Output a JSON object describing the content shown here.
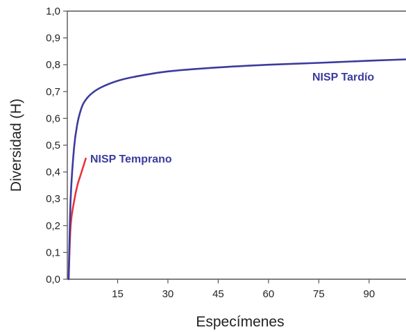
{
  "chart_data": {
    "type": "line",
    "xlabel": "Especímenes",
    "ylabel": "Diversidad (H)",
    "xlim": [
      0,
      101
    ],
    "ylim": [
      0,
      1.0
    ],
    "x_ticks": [
      15,
      30,
      45,
      60,
      75,
      90
    ],
    "y_ticks": [
      {
        "value": 0.0,
        "label": "0,0"
      },
      {
        "value": 0.1,
        "label": "0,1"
      },
      {
        "value": 0.2,
        "label": "0,2"
      },
      {
        "value": 0.3,
        "label": "0,3"
      },
      {
        "value": 0.4,
        "label": "0,4"
      },
      {
        "value": 0.5,
        "label": "0,5"
      },
      {
        "value": 0.6,
        "label": "0,6"
      },
      {
        "value": 0.7,
        "label": "0,7"
      },
      {
        "value": 0.8,
        "label": "0,8"
      },
      {
        "value": 0.9,
        "label": "0,9"
      },
      {
        "value": 1.0,
        "label": "1,0"
      }
    ],
    "grid": false,
    "series": [
      {
        "name": "NISP Temprano",
        "color": "#e8343a",
        "x": [
          0.4,
          1,
          2,
          3,
          4,
          5,
          5.5
        ],
        "y": [
          0.0,
          0.2,
          0.29,
          0.35,
          0.39,
          0.43,
          0.45
        ]
      },
      {
        "name": "NISP Tardío",
        "color": "#3b3b9e",
        "x": [
          0.4,
          1,
          2,
          3,
          4,
          5,
          7,
          10,
          15,
          20,
          30,
          45,
          60,
          75,
          90,
          101
        ],
        "y": [
          0.0,
          0.3,
          0.49,
          0.58,
          0.63,
          0.66,
          0.69,
          0.715,
          0.74,
          0.755,
          0.775,
          0.79,
          0.8,
          0.807,
          0.815,
          0.82
        ]
      }
    ]
  }
}
